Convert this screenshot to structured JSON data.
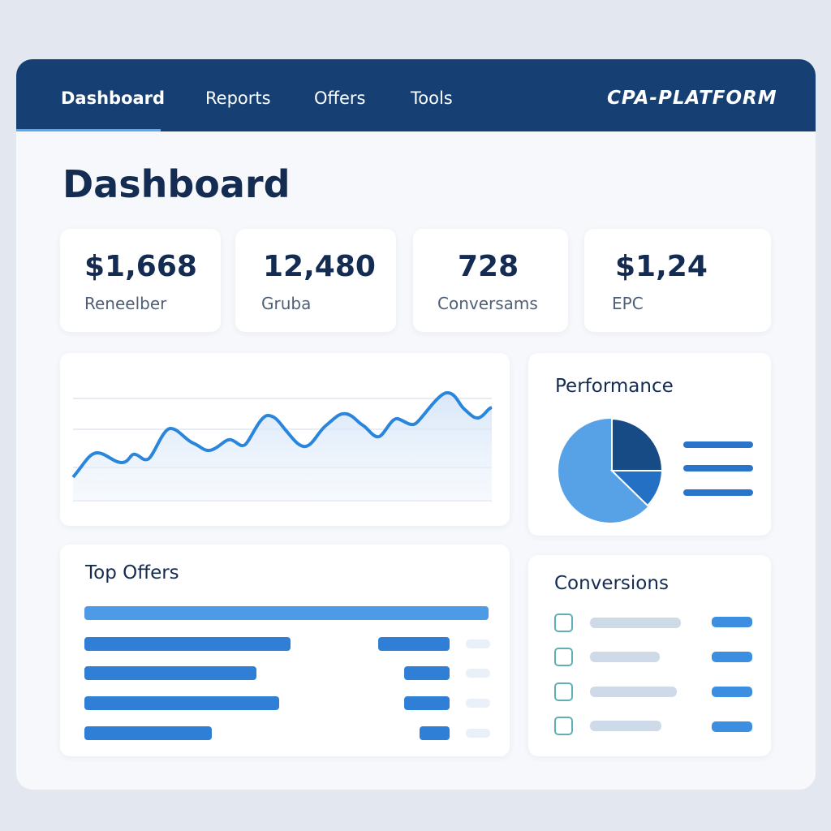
{
  "nav": {
    "items": [
      "Dashboard",
      "Reports",
      "Offers",
      "Tools"
    ],
    "brand": "CPA-PLATFORM"
  },
  "page": {
    "title": "Dashboard"
  },
  "stats": [
    {
      "value": "$1,668",
      "label": "Reneelber"
    },
    {
      "value": "12,480",
      "label": "Gruba"
    },
    {
      "value": "728",
      "label": "Conversams"
    },
    {
      "value": "$1,24",
      "label": "EPC"
    }
  ],
  "panels": {
    "performance": "Performance",
    "top_offers": "Top Offers",
    "conversions": "Conversions"
  }
}
